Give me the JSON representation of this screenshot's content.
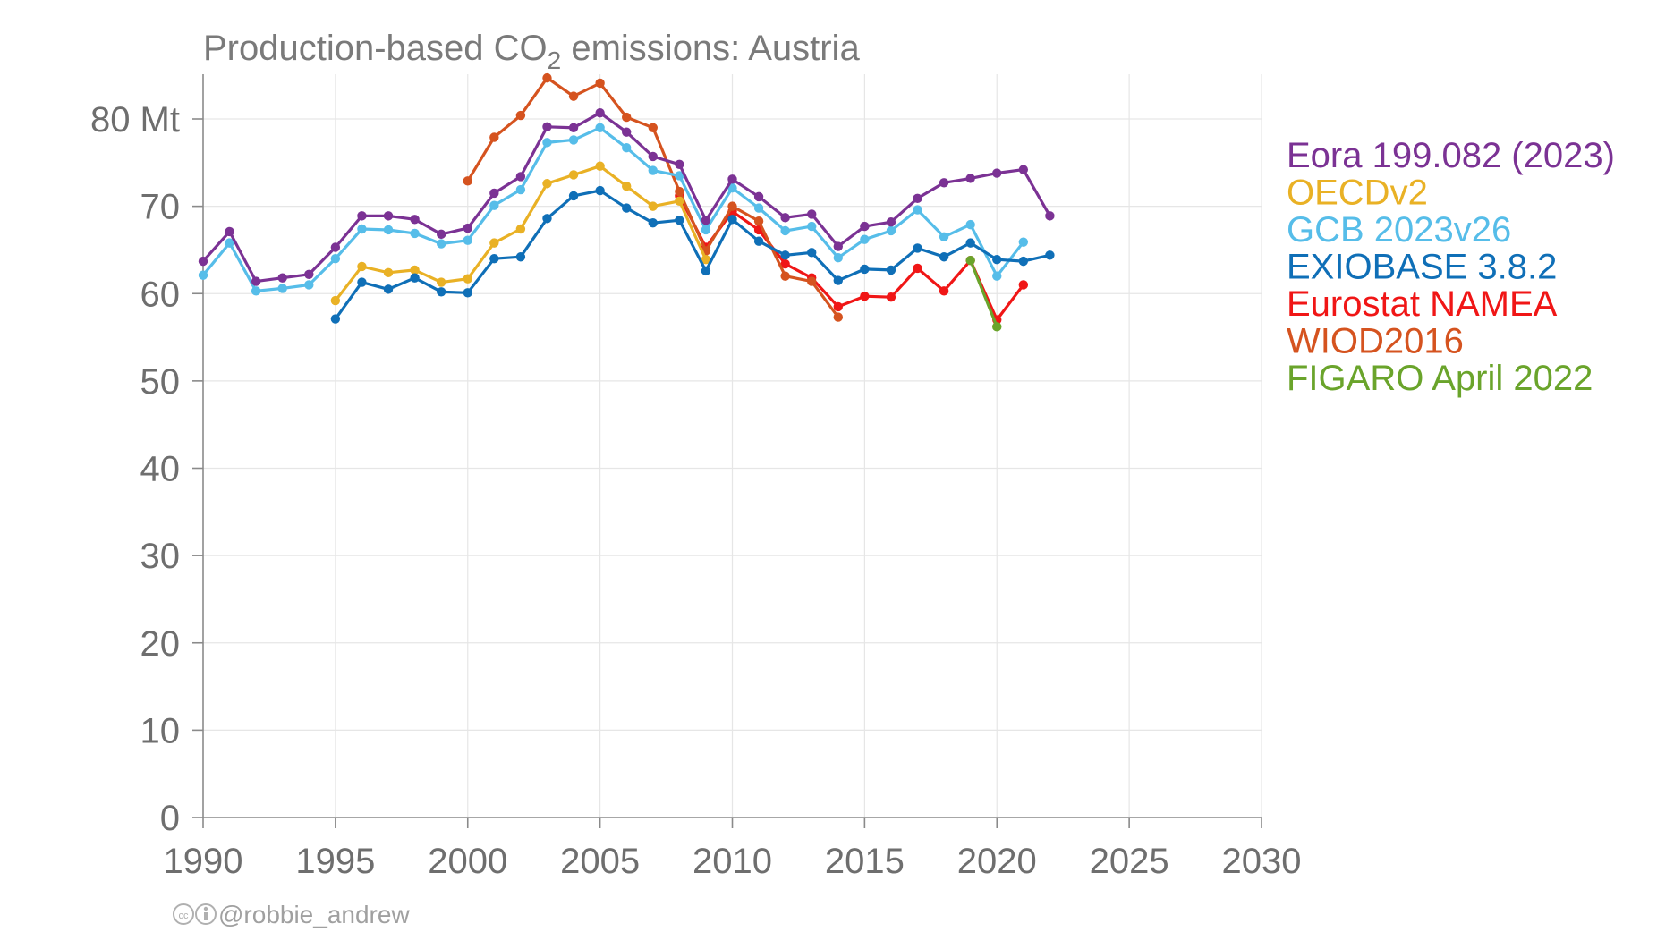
{
  "chart_data": {
    "type": "line",
    "title_prefix": "Production-based CO",
    "title_subscript": "2",
    "title_suffix": " emissions: Austria",
    "y_unit": "Mt",
    "xlim": [
      1990,
      2030
    ],
    "ylim": [
      0,
      80
    ],
    "x_ticks": [
      1990,
      1995,
      2000,
      2005,
      2010,
      2015,
      2020,
      2025,
      2030
    ],
    "y_ticks": [
      0,
      10,
      20,
      30,
      40,
      50,
      60,
      70,
      80
    ],
    "y_tick_labels": [
      "0",
      "10",
      "20",
      "30",
      "40",
      "50",
      "60",
      "70",
      "80 Mt"
    ],
    "grid": true,
    "legend_position": "right",
    "series": [
      {
        "name": "Eora 199.082 (2023)",
        "color": "#7b3294",
        "x": [
          1990,
          1991,
          1992,
          1993,
          1994,
          1995,
          1996,
          1997,
          1998,
          1999,
          2000,
          2001,
          2002,
          2003,
          2004,
          2005,
          2006,
          2007,
          2008,
          2009,
          2010,
          2011,
          2012,
          2013,
          2014,
          2015,
          2016,
          2017,
          2018,
          2019,
          2020,
          2021,
          2022
        ],
        "values": [
          63.7,
          67.1,
          61.4,
          61.8,
          62.2,
          65.3,
          68.9,
          68.9,
          68.5,
          66.8,
          67.5,
          71.5,
          73.4,
          79.1,
          79.0,
          80.7,
          78.5,
          75.7,
          74.8,
          68.4,
          73.1,
          71.1,
          68.7,
          69.1,
          65.4,
          67.7,
          68.2,
          70.9,
          72.7,
          73.2,
          73.8,
          74.2,
          68.9
        ]
      },
      {
        "name": "OECDv2",
        "color": "#e9b125",
        "x": [
          1995,
          1996,
          1997,
          1998,
          1999,
          2000,
          2001,
          2002,
          2003,
          2004,
          2005,
          2006,
          2007,
          2008,
          2009
        ],
        "values": [
          59.2,
          63.1,
          62.4,
          62.7,
          61.3,
          61.7,
          65.8,
          67.4,
          72.6,
          73.6,
          74.6,
          72.3,
          70.0,
          70.6,
          63.9
        ]
      },
      {
        "name": "GCB 2023v26",
        "color": "#56bde9",
        "x": [
          1990,
          1991,
          1992,
          1993,
          1994,
          1995,
          1996,
          1997,
          1998,
          1999,
          2000,
          2001,
          2002,
          2003,
          2004,
          2005,
          2006,
          2007,
          2008,
          2009,
          2010,
          2011,
          2012,
          2013,
          2014,
          2015,
          2016,
          2017,
          2018,
          2019,
          2020,
          2021
        ],
        "values": [
          62.1,
          65.8,
          60.3,
          60.6,
          61.0,
          64.0,
          67.4,
          67.3,
          66.9,
          65.7,
          66.1,
          70.1,
          71.9,
          77.3,
          77.6,
          79.0,
          76.7,
          74.1,
          73.5,
          67.3,
          72.1,
          69.8,
          67.2,
          67.7,
          64.1,
          66.2,
          67.2,
          69.6,
          66.5,
          67.9,
          62.0,
          65.9
        ]
      },
      {
        "name": "EXIOBASE 3.8.2",
        "color": "#0f6fb7",
        "x": [
          1995,
          1996,
          1997,
          1998,
          1999,
          2000,
          2001,
          2002,
          2003,
          2004,
          2005,
          2006,
          2007,
          2008,
          2009,
          2010,
          2011,
          2012,
          2013,
          2014,
          2015,
          2016,
          2017,
          2018,
          2019,
          2020,
          2021,
          2022
        ],
        "values": [
          57.1,
          61.3,
          60.5,
          61.8,
          60.2,
          60.1,
          64.0,
          64.2,
          68.6,
          71.2,
          71.8,
          69.8,
          68.1,
          68.4,
          62.6,
          68.5,
          66.0,
          64.4,
          64.7,
          61.5,
          62.8,
          62.7,
          65.2,
          64.2,
          65.8,
          63.9,
          63.7,
          64.4
        ]
      },
      {
        "name": "Eurostat NAMEA",
        "color": "#f01616",
        "x": [
          2008,
          2009,
          2010,
          2011,
          2012,
          2013,
          2014,
          2015,
          2016,
          2017,
          2018,
          2019,
          2020,
          2021
        ],
        "values": [
          71.2,
          65.3,
          69.4,
          67.3,
          63.4,
          61.8,
          58.5,
          59.7,
          59.6,
          62.9,
          60.3,
          63.8,
          57.0,
          61.0
        ]
      },
      {
        "name": "WIOD2016",
        "color": "#d5531f",
        "x": [
          2000,
          2001,
          2002,
          2003,
          2004,
          2005,
          2006,
          2007,
          2008,
          2009,
          2010,
          2011,
          2012,
          2013,
          2014
        ],
        "values": [
          72.9,
          77.9,
          80.4,
          84.7,
          82.6,
          84.1,
          80.2,
          79.0,
          71.7,
          64.9,
          70.0,
          68.3,
          62.0,
          61.4,
          57.3
        ]
      },
      {
        "name": "FIGARO April 2022",
        "color": "#6aa42b",
        "x": [
          2019,
          2020
        ],
        "values": [
          63.8,
          56.2
        ]
      }
    ],
    "draw_order": [
      4,
      5,
      6,
      2,
      1,
      3,
      0
    ]
  },
  "credit": "@robbie_andrew"
}
